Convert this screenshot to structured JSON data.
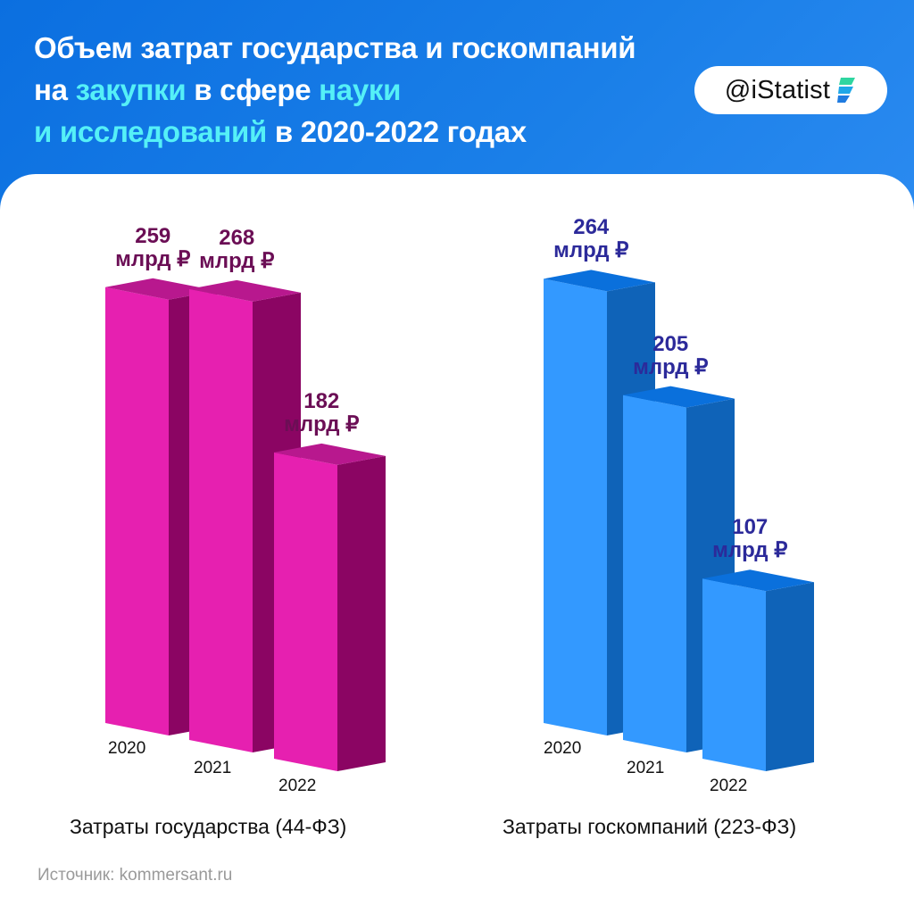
{
  "header": {
    "title_line1": "Объем затрат государства и госкомпаний",
    "title_line2_a": "на ",
    "title_line2_b": "закупки",
    "title_line2_c": " в сфере ",
    "title_line2_d": "науки",
    "title_line3_a": "и исследований",
    "title_line3_b": " в 2020-2022 годах",
    "brand": "@iStatist"
  },
  "colors": {
    "header_bg": "#1372e2",
    "title_highlight": "#55f0f7",
    "pink_front": "#e620b0",
    "pink_side": "#8b0563",
    "pink_top": "#b8188e",
    "pink_label": "#6b0e55",
    "blue_front": "#3399ff",
    "blue_side": "#0f63b8",
    "blue_top": "#0a70dc",
    "blue_label": "#2c2a9a"
  },
  "groups": [
    {
      "label": "Затраты государства (44-ФЗ)",
      "bars": [
        {
          "year": "2020",
          "value": "259",
          "unit": "млрд ₽"
        },
        {
          "year": "2021",
          "value": "268",
          "unit": "млрд ₽"
        },
        {
          "year": "2022",
          "value": "182",
          "unit": "млрд ₽"
        }
      ]
    },
    {
      "label": "Затраты госкомпаний (223-ФЗ)",
      "bars": [
        {
          "year": "2020",
          "value": "264",
          "unit": "млрд ₽"
        },
        {
          "year": "2021",
          "value": "205",
          "unit": "млрд ₽"
        },
        {
          "year": "2022",
          "value": "107",
          "unit": "млрд ₽"
        }
      ]
    }
  ],
  "source": "Источник: kommersant.ru",
  "chart_data": [
    {
      "type": "bar",
      "title": "Затраты государства (44-ФЗ)",
      "categories": [
        "2020",
        "2021",
        "2022"
      ],
      "values": [
        259,
        268,
        182
      ],
      "unit": "млрд ₽",
      "color": "#e620b0"
    },
    {
      "type": "bar",
      "title": "Затраты госкомпаний (223-ФЗ)",
      "categories": [
        "2020",
        "2021",
        "2022"
      ],
      "values": [
        264,
        205,
        107
      ],
      "unit": "млрд ₽",
      "color": "#3399ff"
    }
  ]
}
